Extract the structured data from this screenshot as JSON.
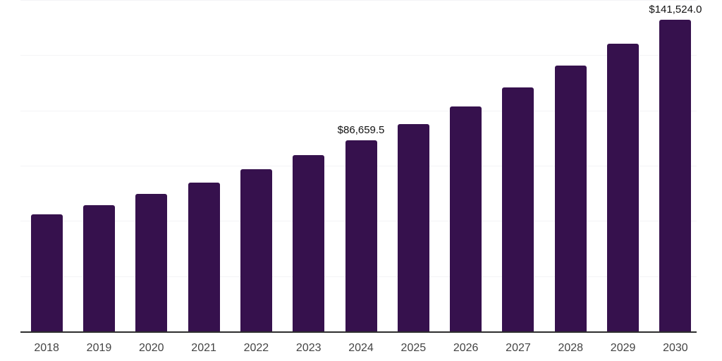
{
  "chart_data": {
    "type": "bar",
    "title": "",
    "xlabel": "",
    "ylabel": "",
    "categories": [
      "2018",
      "2019",
      "2020",
      "2021",
      "2022",
      "2023",
      "2024",
      "2025",
      "2026",
      "2027",
      "2028",
      "2029",
      "2030"
    ],
    "values": [
      53300,
      57600,
      62600,
      67700,
      73600,
      80000,
      86659.5,
      94300,
      102000,
      110900,
      120500,
      130500,
      141524
    ],
    "value_labels": [
      null,
      null,
      null,
      null,
      null,
      null,
      "$86,659.5",
      null,
      null,
      null,
      null,
      null,
      "$141,524.0"
    ],
    "ylim": [
      0,
      150000
    ],
    "gridline_step": 25000,
    "grid_on": true,
    "legend_position": "none",
    "bar_color": "#36114d",
    "axis_line_color": "#2e2e2e",
    "gridline_color": "#f4f4f6",
    "value_label_color": "#111111",
    "tick_label_color": "#444444"
  }
}
